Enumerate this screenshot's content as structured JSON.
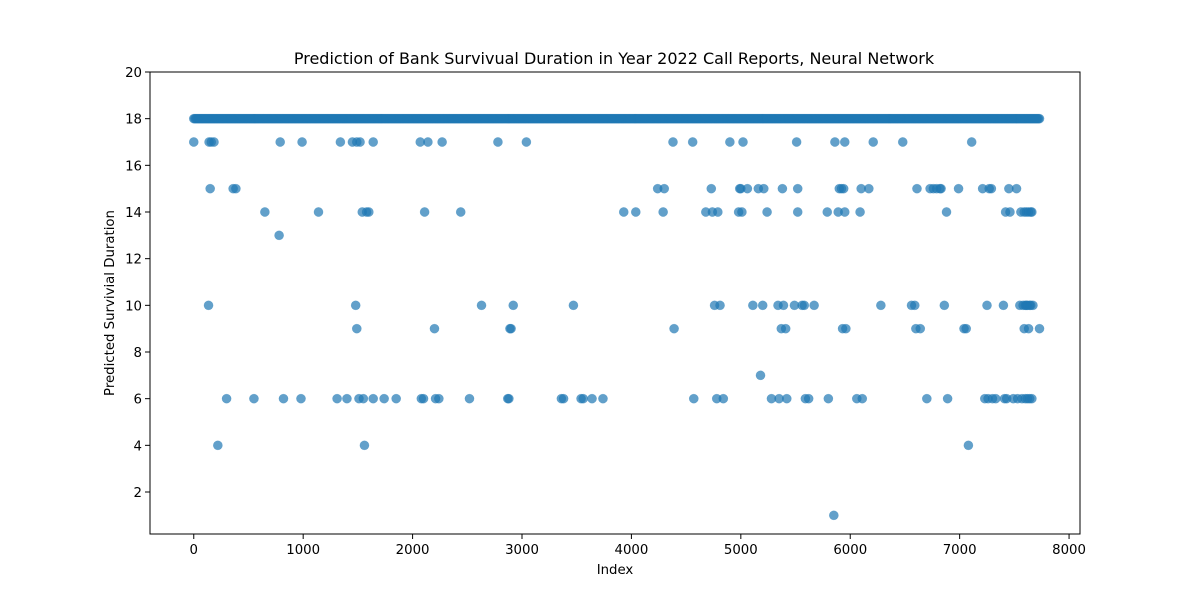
{
  "chart_data": {
    "type": "scatter",
    "title": "Prediction of Bank Survivual Duration in Year 2022 Call Reports, Neural Network",
    "xlabel": "Index",
    "ylabel": "Predicted Survivial Duration",
    "xlim": [
      -400,
      8100
    ],
    "ylim": [
      0.2,
      20
    ],
    "xticks": [
      0,
      1000,
      2000,
      3000,
      4000,
      5000,
      6000,
      7000,
      8000
    ],
    "yticks": [
      2,
      4,
      6,
      8,
      10,
      12,
      14,
      16,
      18,
      20
    ],
    "grid": false,
    "marker_color": "#1f77b4",
    "marker_alpha": 0.7,
    "dense_band": {
      "y": 18,
      "x_start": 0,
      "x_end": 7730
    },
    "points": [
      [
        0,
        17
      ],
      [
        135,
        10
      ],
      [
        140,
        17
      ],
      [
        150,
        15
      ],
      [
        160,
        17
      ],
      [
        185,
        17
      ],
      [
        220,
        4
      ],
      [
        300,
        6
      ],
      [
        360,
        15
      ],
      [
        385,
        15
      ],
      [
        550,
        6
      ],
      [
        650,
        14
      ],
      [
        780,
        13
      ],
      [
        790,
        17
      ],
      [
        820,
        6
      ],
      [
        980,
        6
      ],
      [
        990,
        17
      ],
      [
        1140,
        14
      ],
      [
        1310,
        6
      ],
      [
        1340,
        17
      ],
      [
        1400,
        6
      ],
      [
        1450,
        17
      ],
      [
        1480,
        10
      ],
      [
        1490,
        9
      ],
      [
        1490,
        17
      ],
      [
        1510,
        6
      ],
      [
        1520,
        17
      ],
      [
        1540,
        14
      ],
      [
        1550,
        6
      ],
      [
        1560,
        4
      ],
      [
        1580,
        14
      ],
      [
        1600,
        14
      ],
      [
        1640,
        6
      ],
      [
        1640,
        17
      ],
      [
        1740,
        6
      ],
      [
        1850,
        6
      ],
      [
        2070,
        17
      ],
      [
        2080,
        6
      ],
      [
        2100,
        6
      ],
      [
        2110,
        14
      ],
      [
        2140,
        17
      ],
      [
        2200,
        9
      ],
      [
        2210,
        6
      ],
      [
        2240,
        6
      ],
      [
        2270,
        17
      ],
      [
        2440,
        14
      ],
      [
        2520,
        6
      ],
      [
        2630,
        10
      ],
      [
        2780,
        17
      ],
      [
        2870,
        6
      ],
      [
        2880,
        6
      ],
      [
        2890,
        9
      ],
      [
        2900,
        9
      ],
      [
        2920,
        10
      ],
      [
        3040,
        17
      ],
      [
        3360,
        6
      ],
      [
        3380,
        6
      ],
      [
        3470,
        10
      ],
      [
        3540,
        6
      ],
      [
        3560,
        6
      ],
      [
        3640,
        6
      ],
      [
        3740,
        6
      ],
      [
        3930,
        14
      ],
      [
        4040,
        14
      ],
      [
        4240,
        15
      ],
      [
        4290,
        14
      ],
      [
        4300,
        15
      ],
      [
        4380,
        17
      ],
      [
        4390,
        9
      ],
      [
        4560,
        17
      ],
      [
        4570,
        6
      ],
      [
        4680,
        14
      ],
      [
        4730,
        15
      ],
      [
        4740,
        14
      ],
      [
        4760,
        10
      ],
      [
        4780,
        6
      ],
      [
        4790,
        14
      ],
      [
        4810,
        10
      ],
      [
        4840,
        6
      ],
      [
        4900,
        17
      ],
      [
        4980,
        14
      ],
      [
        4990,
        15
      ],
      [
        5000,
        15
      ],
      [
        5010,
        14
      ],
      [
        5020,
        17
      ],
      [
        5060,
        15
      ],
      [
        5110,
        10
      ],
      [
        5160,
        15
      ],
      [
        5180,
        7
      ],
      [
        5200,
        10
      ],
      [
        5210,
        15
      ],
      [
        5240,
        14
      ],
      [
        5280,
        6
      ],
      [
        5340,
        10
      ],
      [
        5350,
        6
      ],
      [
        5370,
        9
      ],
      [
        5380,
        15
      ],
      [
        5390,
        10
      ],
      [
        5410,
        9
      ],
      [
        5420,
        6
      ],
      [
        5490,
        10
      ],
      [
        5510,
        17
      ],
      [
        5520,
        14
      ],
      [
        5520,
        15
      ],
      [
        5560,
        10
      ],
      [
        5580,
        10
      ],
      [
        5590,
        6
      ],
      [
        5620,
        6
      ],
      [
        5670,
        10
      ],
      [
        5790,
        14
      ],
      [
        5800,
        6
      ],
      [
        5850,
        1
      ],
      [
        5860,
        17
      ],
      [
        5890,
        14
      ],
      [
        5900,
        15
      ],
      [
        5920,
        15
      ],
      [
        5930,
        9
      ],
      [
        5940,
        15
      ],
      [
        5950,
        14
      ],
      [
        5950,
        17
      ],
      [
        5960,
        9
      ],
      [
        6060,
        6
      ],
      [
        6090,
        14
      ],
      [
        6100,
        15
      ],
      [
        6110,
        6
      ],
      [
        6170,
        15
      ],
      [
        6210,
        17
      ],
      [
        6280,
        10
      ],
      [
        6480,
        17
      ],
      [
        6560,
        10
      ],
      [
        6590,
        10
      ],
      [
        6600,
        9
      ],
      [
        6610,
        15
      ],
      [
        6640,
        9
      ],
      [
        6700,
        6
      ],
      [
        6730,
        15
      ],
      [
        6760,
        15
      ],
      [
        6790,
        15
      ],
      [
        6820,
        15
      ],
      [
        6830,
        15
      ],
      [
        6860,
        10
      ],
      [
        6880,
        14
      ],
      [
        6890,
        6
      ],
      [
        6990,
        15
      ],
      [
        7040,
        9
      ],
      [
        7060,
        9
      ],
      [
        7080,
        4
      ],
      [
        7110,
        17
      ],
      [
        7210,
        15
      ],
      [
        7230,
        6
      ],
      [
        7250,
        10
      ],
      [
        7260,
        6
      ],
      [
        7270,
        15
      ],
      [
        7290,
        15
      ],
      [
        7300,
        6
      ],
      [
        7330,
        6
      ],
      [
        7400,
        10
      ],
      [
        7410,
        6
      ],
      [
        7420,
        14
      ],
      [
        7430,
        6
      ],
      [
        7450,
        15
      ],
      [
        7460,
        14
      ],
      [
        7490,
        6
      ],
      [
        7520,
        15
      ],
      [
        7530,
        6
      ],
      [
        7550,
        10
      ],
      [
        7560,
        14
      ],
      [
        7570,
        6
      ],
      [
        7580,
        10
      ],
      [
        7590,
        9
      ],
      [
        7590,
        14
      ],
      [
        7600,
        10
      ],
      [
        7600,
        6
      ],
      [
        7610,
        14
      ],
      [
        7610,
        10
      ],
      [
        7620,
        6
      ],
      [
        7620,
        10
      ],
      [
        7630,
        9
      ],
      [
        7630,
        14
      ],
      [
        7640,
        10
      ],
      [
        7640,
        6
      ],
      [
        7650,
        14
      ],
      [
        7650,
        10
      ],
      [
        7660,
        6
      ],
      [
        7660,
        14
      ],
      [
        7670,
        10
      ],
      [
        7730,
        9
      ]
    ]
  }
}
